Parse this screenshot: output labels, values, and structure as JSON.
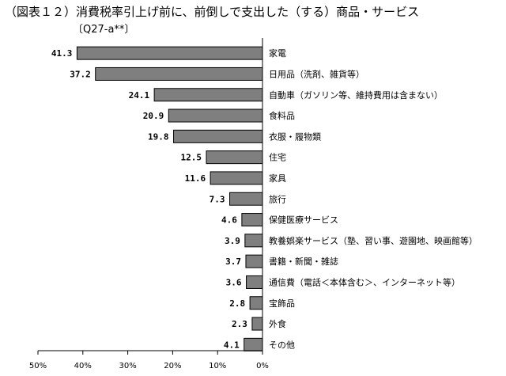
{
  "title": "（図表１２）消費税率引上げ前に、前倒しで支出した（する）商品・サービス",
  "subtitle": "〔Q27-a**〕",
  "chart_data": {
    "type": "bar",
    "orientation": "horizontal",
    "axis_direction": "reversed",
    "categories": [
      "家電",
      "日用品（洗剤、雑貨等）",
      "自動車（ガソリン等、維持費用は含まない）",
      "食料品",
      "衣服・履物類",
      "住宅",
      "家具",
      "旅行",
      "保健医療サービス",
      "教養娯楽サービス（塾、習い事、遊園地、映画館等）",
      "書籍・新聞・雑誌",
      "通信費（電話＜本体含む＞、インターネット等）",
      "宝飾品",
      "外食",
      "その他"
    ],
    "values": [
      41.3,
      37.2,
      24.1,
      20.9,
      19.8,
      12.5,
      11.6,
      7.3,
      4.6,
      3.9,
      3.7,
      3.6,
      2.8,
      2.3,
      4.1
    ],
    "value_labels": [
      "41.3",
      "37.2",
      "24.1",
      "20.9",
      "19.8",
      "12.5",
      "11.6",
      "7.3",
      "4.6",
      "3.9",
      "3.7",
      "3.6",
      "2.8",
      "2.3",
      "4.1"
    ],
    "xlim": [
      0,
      50
    ],
    "x_ticks": [
      50,
      40,
      30,
      20,
      10,
      0
    ],
    "x_tick_labels": [
      "50%",
      "40%",
      "30%",
      "20%",
      "10%",
      "0%"
    ],
    "xlabel": "",
    "ylabel": "",
    "grid": false,
    "bar_color": "#7f7f7f",
    "bar_edge_color": "#000000"
  }
}
